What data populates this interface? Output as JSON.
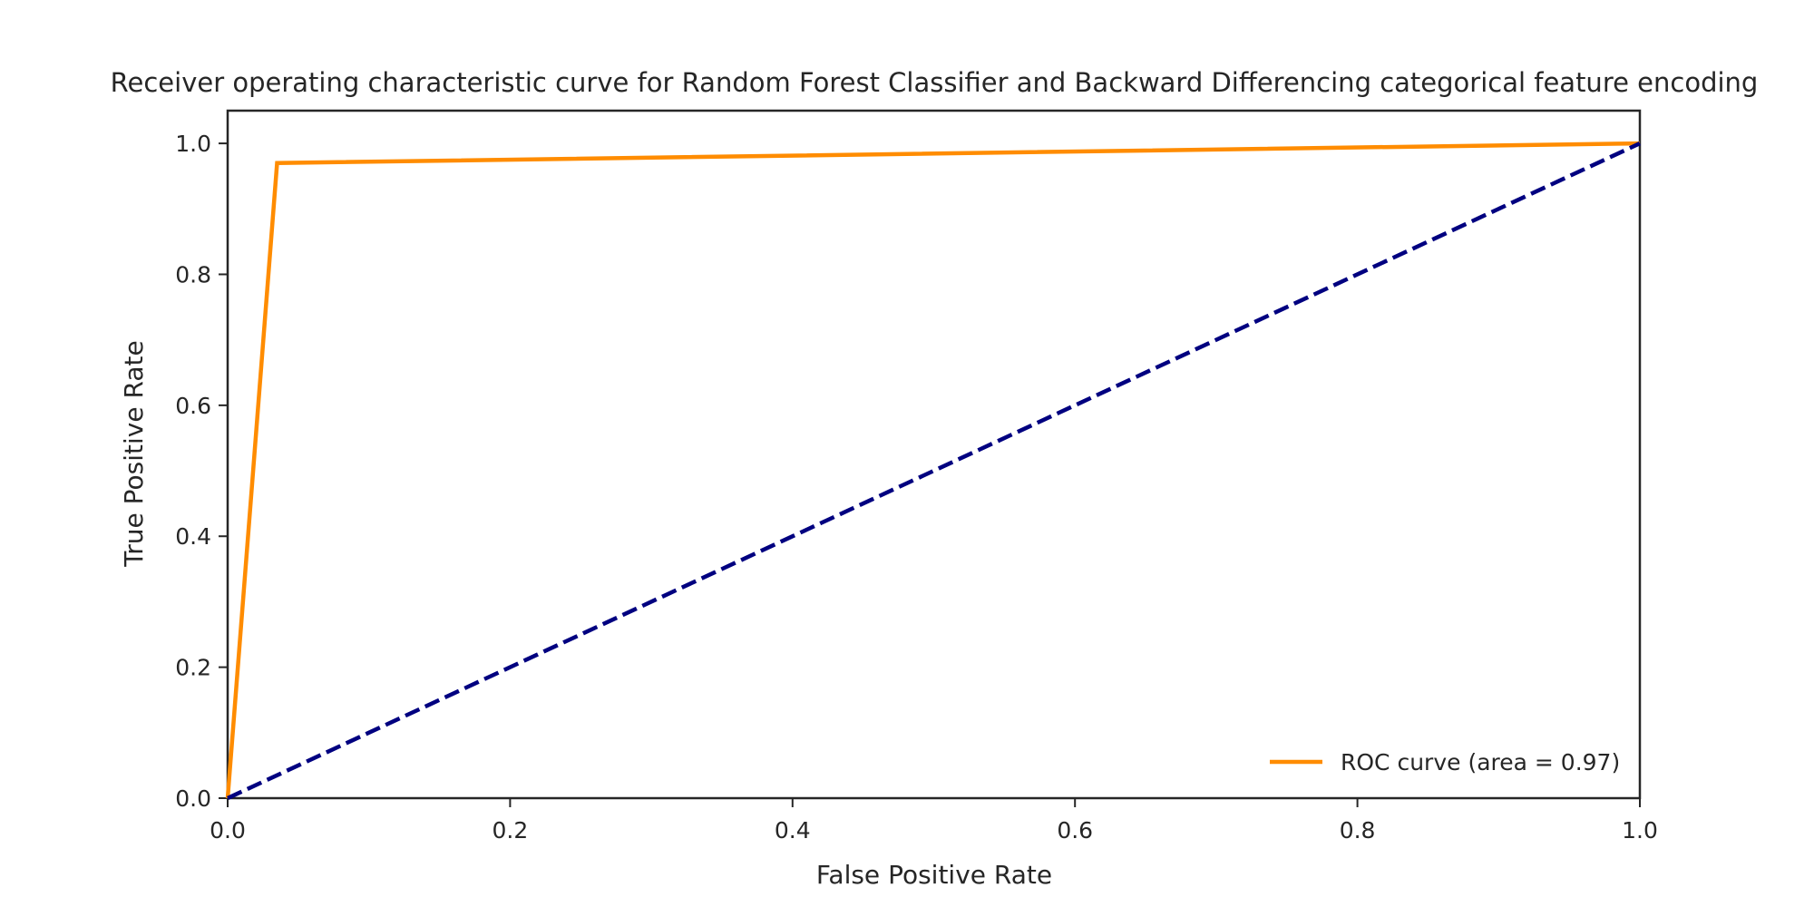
{
  "chart_data": {
    "type": "line",
    "title": "Receiver operating characteristic curve for Random Forest Classifier and Backward Differencing categorical feature encoding",
    "xlabel": "False Positive Rate",
    "ylabel": "True Positive Rate",
    "xlim": [
      0.0,
      1.0
    ],
    "ylim": [
      0.0,
      1.05
    ],
    "x_ticks": [
      0.0,
      0.2,
      0.4,
      0.6,
      0.8,
      1.0
    ],
    "x_tick_labels": [
      "0.0",
      "0.2",
      "0.4",
      "0.6",
      "0.8",
      "1.0"
    ],
    "y_ticks": [
      0.0,
      0.2,
      0.4,
      0.6,
      0.8,
      1.0
    ],
    "y_tick_labels": [
      "0.0",
      "0.2",
      "0.4",
      "0.6",
      "0.8",
      "1.0"
    ],
    "grid": false,
    "legend_position": "lower-right",
    "series": [
      {
        "name": "ROC curve (area = 0.97)",
        "x": [
          0.0,
          0.035,
          1.0
        ],
        "y": [
          0.0,
          0.97,
          1.0
        ],
        "color": "#ff8c00",
        "style": "solid"
      },
      {
        "x": [
          0.0,
          1.0
        ],
        "y": [
          0.0,
          1.0
        ],
        "color": "#000080",
        "style": "dashed"
      }
    ]
  }
}
